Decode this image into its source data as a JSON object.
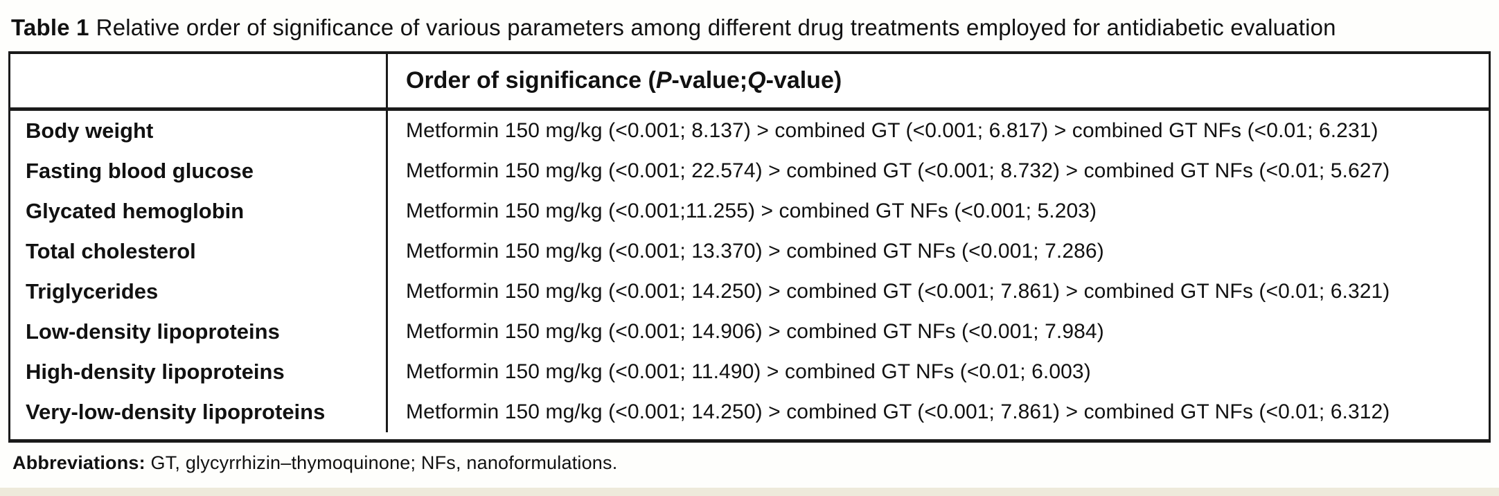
{
  "title": {
    "label": "Table 1",
    "text": "Relative order of significance of various parameters among different drug treatments employed for antidiabetic evaluation"
  },
  "header": {
    "col1": "",
    "col2_prefix": "Order of significance (",
    "col2_p": "P",
    "col2_mid": "-value; ",
    "col2_q": "Q",
    "col2_suffix": "-value)"
  },
  "rows": [
    {
      "param": "Body weight",
      "order": "Metformin 150 mg/kg (<0.001; 8.137) > combined GT (<0.001; 6.817) > combined GT NFs (<0.01; 6.231)"
    },
    {
      "param": "Fasting blood glucose",
      "order": "Metformin 150 mg/kg (<0.001; 22.574) > combined GT (<0.001; 8.732) > combined GT NFs (<0.01; 5.627)"
    },
    {
      "param": "Glycated hemoglobin",
      "order": "Metformin 150 mg/kg (<0.001;11.255) > combined GT NFs (<0.001; 5.203)"
    },
    {
      "param": "Total cholesterol",
      "order": "Metformin 150 mg/kg (<0.001; 13.370) > combined GT NFs (<0.001; 7.286)"
    },
    {
      "param": "Triglycerides",
      "order": "Metformin 150 mg/kg (<0.001; 14.250) > combined GT (<0.001; 7.861) > combined GT NFs (<0.01; 6.321)"
    },
    {
      "param": "Low-density lipoproteins",
      "order": "Metformin 150 mg/kg (<0.001; 14.906) > combined GT NFs (<0.001; 7.984)"
    },
    {
      "param": "High-density lipoproteins",
      "order": "Metformin 150 mg/kg (<0.001; 11.490) > combined GT NFs (<0.01; 6.003)"
    },
    {
      "param": "Very-low-density lipoproteins",
      "order": "Metformin 150 mg/kg (<0.001; 14.250) > combined GT (<0.001; 7.861) > combined GT NFs (<0.01; 6.312)"
    }
  ],
  "footnote": {
    "label": "Abbreviations:",
    "text": " GT, glycyrrhizin–thymoquinone; NFs, nanoformulations."
  },
  "colors": {
    "text": "#111111",
    "border": "#1a1a1a",
    "background": "#ffffff",
    "edge_tint": "#eeeadb"
  }
}
